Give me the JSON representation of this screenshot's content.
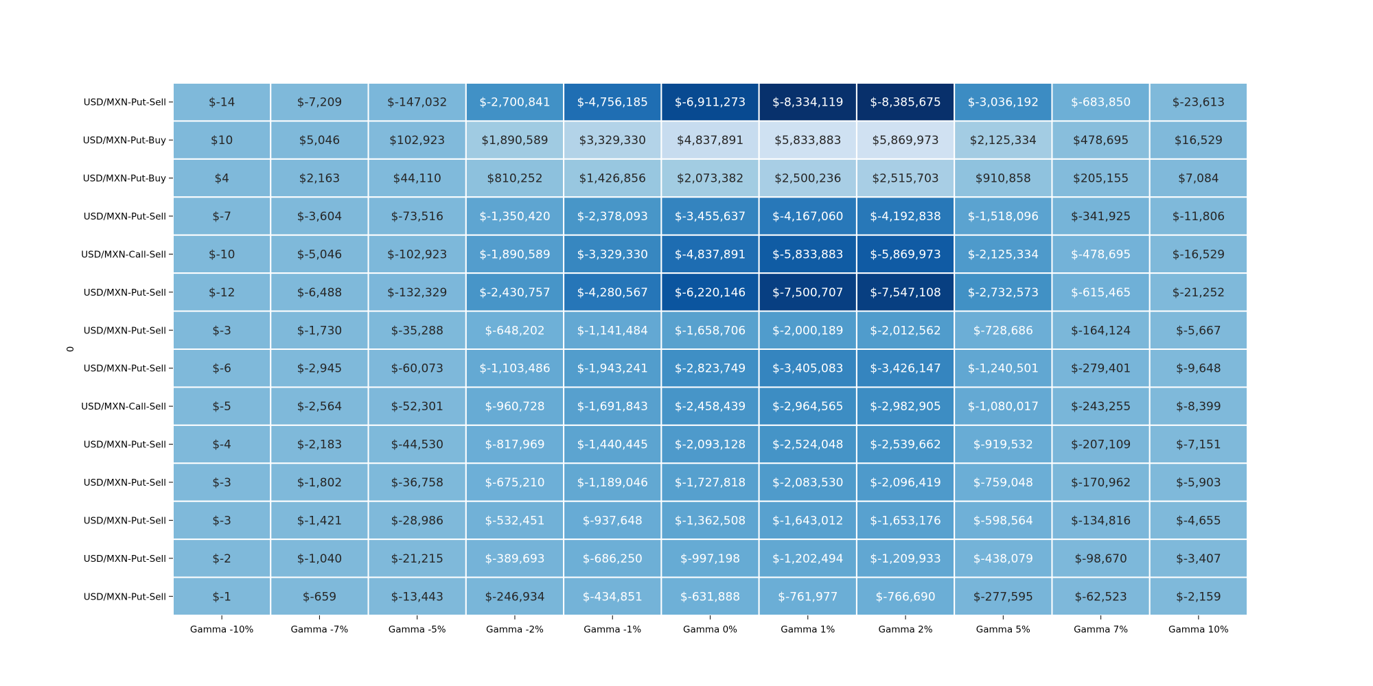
{
  "chart_data": {
    "type": "heatmap",
    "ylabel": "0",
    "xlabel": "",
    "title": "",
    "colormap": "Blues",
    "color_scale_note": "absolute value drives shade",
    "columns": [
      "Gamma -10%",
      "Gamma -7%",
      "Gamma -5%",
      "Gamma -2%",
      "Gamma -1%",
      "Gamma 0%",
      "Gamma 1%",
      "Gamma 2%",
      "Gamma 5%",
      "Gamma 7%",
      "Gamma 10%"
    ],
    "rows": [
      "USD/MXN-Put-Sell",
      "USD/MXN-Put-Buy",
      "USD/MXN-Put-Buy",
      "USD/MXN-Put-Sell",
      "USD/MXN-Call-Sell",
      "USD/MXN-Put-Sell",
      "USD/MXN-Put-Sell",
      "USD/MXN-Put-Sell",
      "USD/MXN-Call-Sell",
      "USD/MXN-Put-Sell",
      "USD/MXN-Put-Sell",
      "USD/MXN-Put-Sell",
      "USD/MXN-Put-Sell",
      "USD/MXN-Put-Sell"
    ],
    "values": [
      [
        -14,
        -7209,
        -147032,
        -2700841,
        -4756185,
        -6911273,
        -8334119,
        -8385675,
        -3036192,
        -683850,
        -23613
      ],
      [
        10,
        5046,
        102923,
        1890589,
        3329330,
        4837891,
        5833883,
        5869973,
        2125334,
        478695,
        16529
      ],
      [
        4,
        2163,
        44110,
        810252,
        1426856,
        2073382,
        2500236,
        2515703,
        910858,
        205155,
        7084
      ],
      [
        -7,
        -3604,
        -73516,
        -1350420,
        -2378093,
        -3455637,
        -4167060,
        -4192838,
        -1518096,
        -341925,
        -11806
      ],
      [
        -10,
        -5046,
        -102923,
        -1890589,
        -3329330,
        -4837891,
        -5833883,
        -5869973,
        -2125334,
        -478695,
        -16529
      ],
      [
        -12,
        -6488,
        -132329,
        -2430757,
        -4280567,
        -6220146,
        -7500707,
        -7547108,
        -2732573,
        -615465,
        -21252
      ],
      [
        -3,
        -1730,
        -35288,
        -648202,
        -1141484,
        -1658706,
        -2000189,
        -2012562,
        -728686,
        -164124,
        -5667
      ],
      [
        -6,
        -2945,
        -60073,
        -1103486,
        -1943241,
        -2823749,
        -3405083,
        -3426147,
        -1240501,
        -279401,
        -9648
      ],
      [
        -5,
        -2564,
        -52301,
        -960728,
        -1691843,
        -2458439,
        -2964565,
        -2982905,
        -1080017,
        -243255,
        -8399
      ],
      [
        -4,
        -2183,
        -44530,
        -817969,
        -1440445,
        -2093128,
        -2524048,
        -2539662,
        -919532,
        -207109,
        -7151
      ],
      [
        -3,
        -1802,
        -36758,
        -675210,
        -1189046,
        -1727818,
        -2083530,
        -2096419,
        -759048,
        -170962,
        -5903
      ],
      [
        -3,
        -1421,
        -28986,
        -532451,
        -937648,
        -1362508,
        -1643012,
        -1653176,
        -598564,
        -134816,
        -4655
      ],
      [
        -2,
        -1040,
        -21215,
        -389693,
        -686250,
        -997198,
        -1202494,
        -1209933,
        -438079,
        -98670,
        -3407
      ],
      [
        -1,
        -659,
        -13443,
        -246934,
        -434851,
        -631888,
        -761977,
        -766690,
        -277595,
        -62523,
        -2159
      ]
    ],
    "annotations": [
      [
        "$-14",
        "$-7,209",
        "$-147,032",
        "$-2,700,841",
        "$-4,756,185",
        "$-6,911,273",
        "$-8,334,119",
        "$-8,385,675",
        "$-3,036,192",
        "$-683,850",
        "$-23,613"
      ],
      [
        "$10",
        "$5,046",
        "$102,923",
        "$1,890,589",
        "$3,329,330",
        "$4,837,891",
        "$5,833,883",
        "$5,869,973",
        "$2,125,334",
        "$478,695",
        "$16,529"
      ],
      [
        "$4",
        "$2,163",
        "$44,110",
        "$810,252",
        "$1,426,856",
        "$2,073,382",
        "$2,500,236",
        "$2,515,703",
        "$910,858",
        "$205,155",
        "$7,084"
      ],
      [
        "$-7",
        "$-3,604",
        "$-73,516",
        "$-1,350,420",
        "$-2,378,093",
        "$-3,455,637",
        "$-4,167,060",
        "$-4,192,838",
        "$-1,518,096",
        "$-341,925",
        "$-11,806"
      ],
      [
        "$-10",
        "$-5,046",
        "$-102,923",
        "$-1,890,589",
        "$-3,329,330",
        "$-4,837,891",
        "$-5,833,883",
        "$-5,869,973",
        "$-2,125,334",
        "$-478,695",
        "$-16,529"
      ],
      [
        "$-12",
        "$-6,488",
        "$-132,329",
        "$-2,430,757",
        "$-4,280,567",
        "$-6,220,146",
        "$-7,500,707",
        "$-7,547,108",
        "$-2,732,573",
        "$-615,465",
        "$-21,252"
      ],
      [
        "$-3",
        "$-1,730",
        "$-35,288",
        "$-648,202",
        "$-1,141,484",
        "$-1,658,706",
        "$-2,000,189",
        "$-2,012,562",
        "$-728,686",
        "$-164,124",
        "$-5,667"
      ],
      [
        "$-6",
        "$-2,945",
        "$-60,073",
        "$-1,103,486",
        "$-1,943,241",
        "$-2,823,749",
        "$-3,405,083",
        "$-3,426,147",
        "$-1,240,501",
        "$-279,401",
        "$-9,648"
      ],
      [
        "$-5",
        "$-2,564",
        "$-52,301",
        "$-960,728",
        "$-1,691,843",
        "$-2,458,439",
        "$-2,964,565",
        "$-2,982,905",
        "$-1,080,017",
        "$-243,255",
        "$-8,399"
      ],
      [
        "$-4",
        "$-2,183",
        "$-44,530",
        "$-817,969",
        "$-1,440,445",
        "$-2,093,128",
        "$-2,524,048",
        "$-2,539,662",
        "$-919,532",
        "$-207,109",
        "$-7,151"
      ],
      [
        "$-3",
        "$-1,802",
        "$-36,758",
        "$-675,210",
        "$-1,189,046",
        "$-1,727,818",
        "$-2,083,530",
        "$-2,096,419",
        "$-759,048",
        "$-170,962",
        "$-5,903"
      ],
      [
        "$-3",
        "$-1,421",
        "$-28,986",
        "$-532,451",
        "$-937,648",
        "$-1,362,508",
        "$-1,643,012",
        "$-1,653,176",
        "$-598,564",
        "$-134,816",
        "$-4,655"
      ],
      [
        "$-2",
        "$-1,040",
        "$-21,215",
        "$-389,693",
        "$-686,250",
        "$-997,198",
        "$-1,202,494",
        "$-1,209,933",
        "$-438,079",
        "$-98,670",
        "$-3,407"
      ],
      [
        "$-1",
        "$-659",
        "$-13,443",
        "$-246,934",
        "$-434,851",
        "$-631,888",
        "$-761,977",
        "$-766,690",
        "$-277,595",
        "$-62,523",
        "$-2,159"
      ]
    ],
    "grid": false,
    "legend": "none"
  }
}
